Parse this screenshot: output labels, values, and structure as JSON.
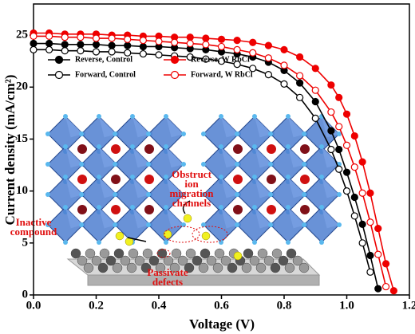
{
  "chart_data": {
    "type": "line",
    "x_label": "Voltage (V)",
    "y_label": "Current density (mA/cm²)",
    "xlim": [
      0,
      1.2
    ],
    "ylim": [
      0,
      28
    ],
    "xticks": [
      {
        "value": 0,
        "label": "0.0"
      },
      0.2,
      0.4,
      0.6,
      0.8,
      {
        "value": 1,
        "label": "1.0"
      },
      1.2
    ],
    "yticks": [
      0,
      5,
      10,
      15,
      20,
      25
    ],
    "x": [
      0,
      0.05,
      0.1,
      0.15,
      0.2,
      0.25,
      0.3,
      0.35,
      0.4,
      0.45,
      0.5,
      0.55,
      0.6,
      0.65,
      0.7,
      0.75,
      0.8,
      0.85,
      0.9,
      0.95,
      0.975,
      1.0,
      1.025,
      1.05,
      1.075,
      1.1,
      1.125,
      1.15
    ],
    "series": [
      {
        "name": "Reverse, Control",
        "color": "#000000",
        "marker": "filled",
        "values": [
          24.2,
          24.2,
          24.1,
          24.1,
          24.1,
          24.0,
          24.0,
          23.9,
          23.9,
          23.8,
          23.7,
          23.6,
          23.4,
          23.2,
          22.9,
          22.4,
          21.6,
          20.4,
          18.6,
          15.8,
          14.0,
          11.8,
          9.4,
          6.8,
          3.8,
          0.6,
          null,
          null
        ]
      },
      {
        "name": "Forward, Control",
        "color": "#000000",
        "marker": "open",
        "values": [
          23.6,
          23.6,
          23.5,
          23.5,
          23.4,
          23.4,
          23.3,
          23.2,
          23.1,
          23.0,
          22.9,
          22.7,
          22.5,
          22.2,
          21.8,
          21.2,
          20.3,
          19.0,
          17.0,
          14.0,
          12.1,
          10.0,
          7.6,
          5.0,
          2.2,
          null,
          null,
          null
        ]
      },
      {
        "name": "Reverse, W RbCl",
        "color": "#ee0000",
        "marker": "filled",
        "values": [
          25.2,
          25.2,
          25.1,
          25.1,
          25.1,
          25.0,
          25.0,
          24.9,
          24.9,
          24.8,
          24.8,
          24.7,
          24.6,
          24.5,
          24.3,
          24.0,
          23.6,
          22.9,
          21.8,
          20.2,
          19.0,
          17.4,
          15.3,
          12.8,
          9.8,
          6.4,
          3.0,
          0.4
        ]
      },
      {
        "name": "Forward, W RbCl",
        "color": "#ee0000",
        "marker": "open",
        "values": [
          24.9,
          24.9,
          24.8,
          24.8,
          24.7,
          24.7,
          24.6,
          24.5,
          24.4,
          24.3,
          24.2,
          24.1,
          23.9,
          23.6,
          23.3,
          22.8,
          22.1,
          21.1,
          19.7,
          17.6,
          16.2,
          14.4,
          12.3,
          9.8,
          7.0,
          3.9,
          0.8,
          null
        ]
      }
    ],
    "annotations": [
      [
        "Obstruct",
        "ion",
        "migration",
        "channels"
      ],
      [
        "Inactive",
        "compound"
      ],
      [
        "Passivate",
        "defects"
      ]
    ]
  }
}
